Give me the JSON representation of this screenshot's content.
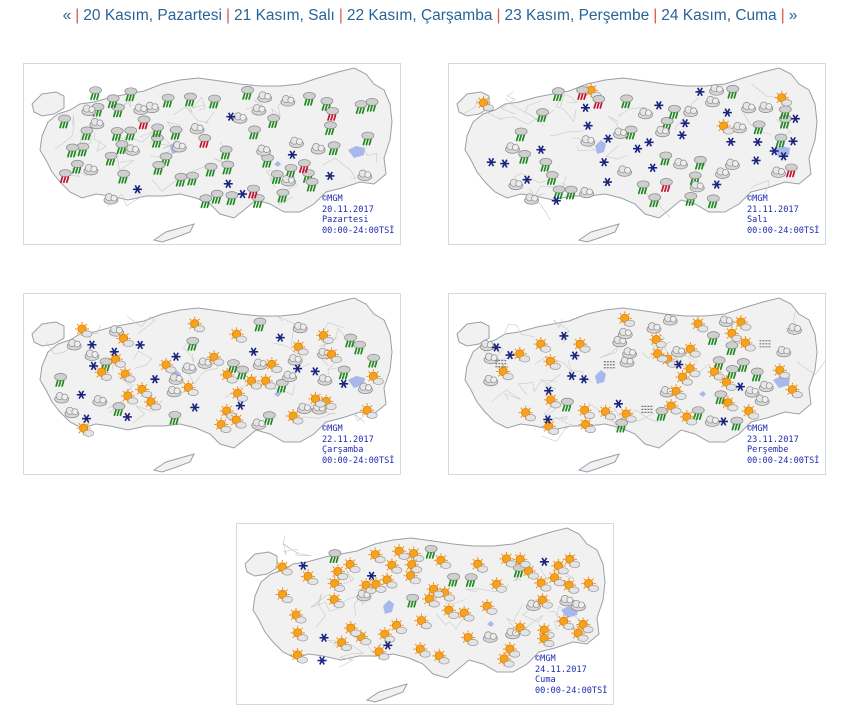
{
  "nav": {
    "prev": "«",
    "next": "»",
    "days": [
      "20 Kasım, Pazartesi",
      "21 Kasım, Salı",
      "22 Kasım, Çarşamba",
      "23 Kasım, Perşembe",
      "24 Kasım, Cuma"
    ]
  },
  "colors": {
    "link": "#2a6496",
    "separator": "#d9534f",
    "caption": "#1f2bb0",
    "map_fill": "#f1f1f1",
    "map_border": "#9aa0a6",
    "lake": "#a9b8ea"
  },
  "maps": [
    {
      "copyright": "©MGM",
      "date": "20.11.2017",
      "day": "Pazartesi",
      "time": "00:00-24:00TSİ",
      "icons": {
        "rain": 48,
        "cloud": 18,
        "sun": 0,
        "snow": 6,
        "thunder": 6,
        "fog": 0
      }
    },
    {
      "copyright": "©MGM",
      "date": "21.11.2017",
      "day": "Salı",
      "time": "00:00-24:00TSİ",
      "icons": {
        "rain": 24,
        "cloud": 20,
        "sun": 4,
        "snow": 26,
        "thunder": 4,
        "fog": 0
      }
    },
    {
      "copyright": "©MGM",
      "date": "22.11.2017",
      "day": "Çarşamba",
      "time": "00:00-24:00TSİ",
      "icons": {
        "rain": 14,
        "cloud": 20,
        "sun": 30,
        "snow": 16,
        "thunder": 0,
        "fog": 0
      }
    },
    {
      "copyright": "©MGM",
      "date": "23.11.2017",
      "day": "Perşembe",
      "time": "00:00-24:00TSİ",
      "icons": {
        "rain": 12,
        "cloud": 18,
        "sun": 32,
        "snow": 12,
        "thunder": 0,
        "fog": 4
      }
    },
    {
      "copyright": "©MGM",
      "date": "24.11.2017",
      "day": "Cuma",
      "time": "00:00-24:00TSİ",
      "icons": {
        "rain": 6,
        "cloud": 6,
        "sun": 56,
        "snow": 6,
        "thunder": 0,
        "fog": 0
      }
    }
  ]
}
